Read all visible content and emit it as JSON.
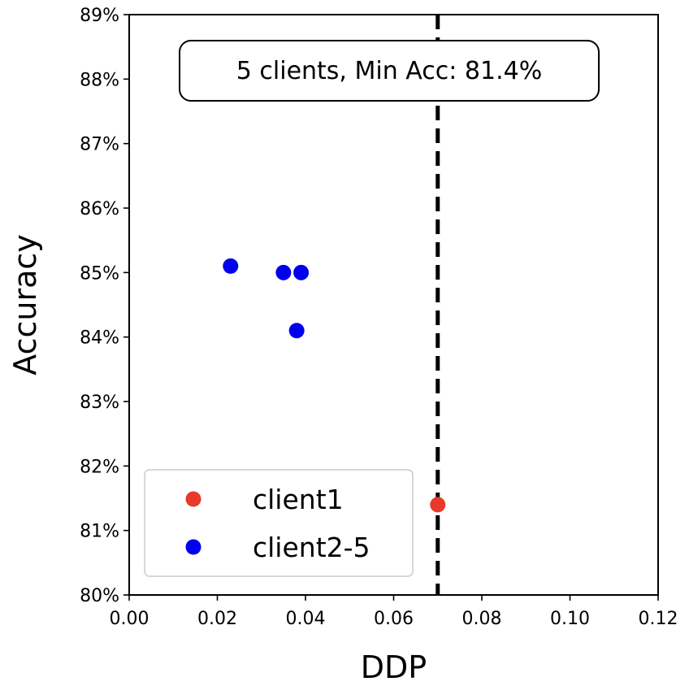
{
  "chart_data": {
    "type": "scatter",
    "title": "",
    "xlabel": "DDP",
    "ylabel": "Accuracy",
    "xlim": [
      0.0,
      0.12
    ],
    "ylim": [
      80,
      89
    ],
    "xticks": [
      0.0,
      0.02,
      0.04,
      0.06,
      0.08,
      0.1,
      0.12
    ],
    "xtick_labels": [
      "0.00",
      "0.02",
      "0.04",
      "0.06",
      "0.08",
      "0.10",
      "0.12"
    ],
    "yticks": [
      80,
      81,
      82,
      83,
      84,
      85,
      86,
      87,
      88,
      89
    ],
    "ytick_labels": [
      "80%",
      "81%",
      "82%",
      "83%",
      "84%",
      "85%",
      "86%",
      "87%",
      "88%",
      "89%"
    ],
    "grid": false,
    "legend_position": "bottom-left",
    "series": [
      {
        "name": "client1",
        "color": "#e8392a",
        "points": [
          {
            "x": 0.07,
            "y": 81.4
          }
        ]
      },
      {
        "name": "client2-5",
        "color": "#0000ee",
        "points": [
          {
            "x": 0.023,
            "y": 85.1
          },
          {
            "x": 0.035,
            "y": 85.0
          },
          {
            "x": 0.039,
            "y": 85.0
          },
          {
            "x": 0.038,
            "y": 84.1
          }
        ]
      }
    ],
    "reference_line": {
      "orientation": "vertical",
      "x": 0.07,
      "style": "dashed",
      "color": "#000000"
    },
    "annotation": "5 clients, Min Acc: 81.4%"
  }
}
